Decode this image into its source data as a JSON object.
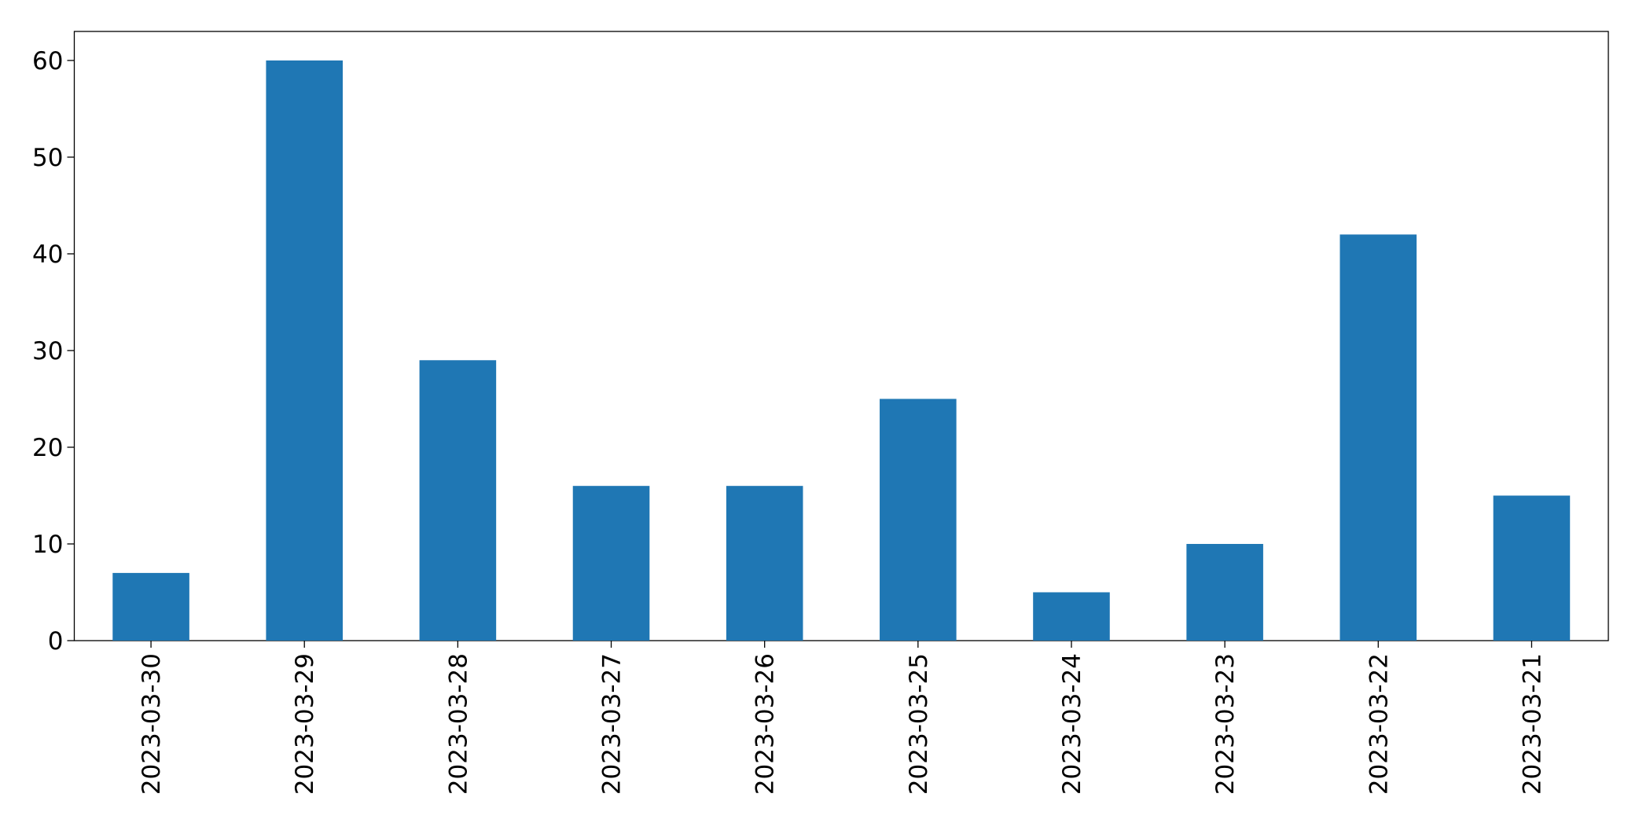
{
  "chart_data": {
    "type": "bar",
    "categories": [
      "2023-03-30",
      "2023-03-29",
      "2023-03-28",
      "2023-03-27",
      "2023-03-26",
      "2023-03-25",
      "2023-03-24",
      "2023-03-23",
      "2023-03-22",
      "2023-03-21"
    ],
    "values": [
      7,
      60,
      29,
      16,
      16,
      25,
      5,
      10,
      42,
      15
    ],
    "color": "#1f77b4",
    "ylim": [
      0,
      63
    ],
    "yticks": [
      0,
      10,
      20,
      30,
      40,
      50,
      60
    ],
    "grid": false
  }
}
